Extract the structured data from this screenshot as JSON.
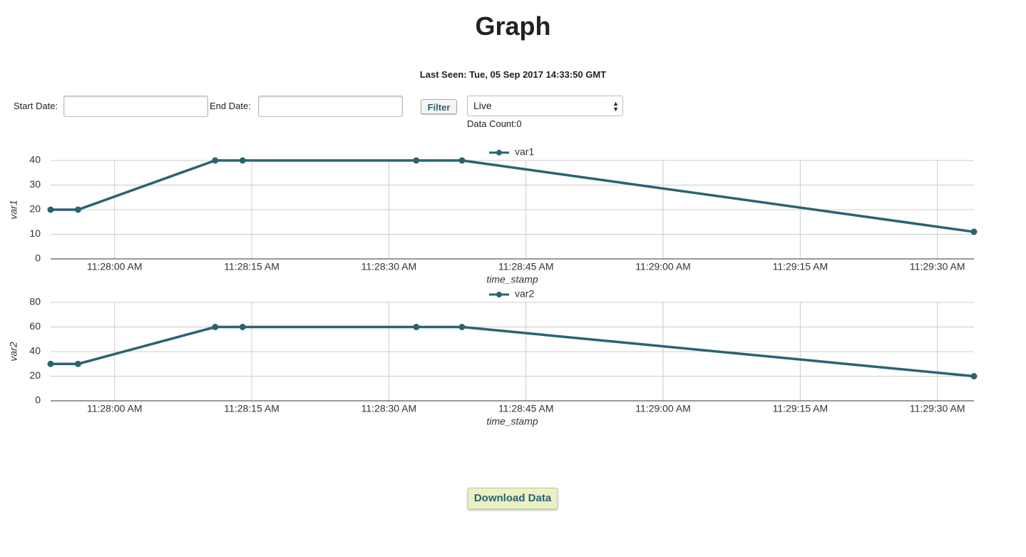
{
  "header": {
    "title": "Graph",
    "last_seen": "Last Seen: Tue, 05 Sep 2017 14:33:50 GMT"
  },
  "form": {
    "start_label": "Start Date:",
    "end_label": "End Date:",
    "filter_button": "Filter",
    "select_value": "Live",
    "data_count": "Data Count:0"
  },
  "chart_data": [
    {
      "type": "line",
      "xlabel": "time_stamp",
      "ylabel": "var1",
      "x": [
        "11:27:53 AM",
        "11:27:56 AM",
        "11:28:11 AM",
        "11:28:14 AM",
        "11:28:33 AM",
        "11:28:38 AM",
        "11:29:34 AM"
      ],
      "series": [
        {
          "name": "var1",
          "color": "#2b6373",
          "values": [
            20,
            20,
            40,
            40,
            40,
            40,
            11
          ]
        }
      ],
      "xlim": [
        "11:27:53 AM",
        "11:29:34 AM"
      ],
      "xticks": [
        "11:28:00 AM",
        "11:28:15 AM",
        "11:28:30 AM",
        "11:28:45 AM",
        "11:29:00 AM",
        "11:29:15 AM",
        "11:29:30 AM"
      ],
      "ylim": [
        0,
        40
      ],
      "yticks": [
        0,
        10,
        20,
        30,
        40
      ],
      "grid": true,
      "legend": "top"
    },
    {
      "type": "line",
      "xlabel": "time_stamp",
      "ylabel": "var2",
      "x": [
        "11:27:53 AM",
        "11:27:56 AM",
        "11:28:11 AM",
        "11:28:14 AM",
        "11:28:33 AM",
        "11:28:38 AM",
        "11:29:34 AM"
      ],
      "series": [
        {
          "name": "var2",
          "color": "#2b6373",
          "values": [
            30,
            30,
            60,
            60,
            60,
            60,
            20
          ]
        }
      ],
      "xlim": [
        "11:27:53 AM",
        "11:29:34 AM"
      ],
      "xticks": [
        "11:28:00 AM",
        "11:28:15 AM",
        "11:28:30 AM",
        "11:28:45 AM",
        "11:29:00 AM",
        "11:29:15 AM",
        "11:29:30 AM"
      ],
      "ylim": [
        0,
        80
      ],
      "yticks": [
        0,
        20,
        40,
        60,
        80
      ],
      "grid": true,
      "legend": "top"
    }
  ],
  "download_button": "Download Data"
}
